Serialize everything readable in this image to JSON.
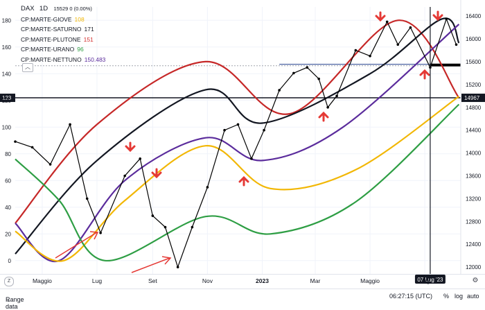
{
  "header": {
    "symbol": "DAX",
    "interval": "1D",
    "price_info": "15529 0 (0.00%)"
  },
  "legend": [
    {
      "label": "CP:MARTE-GIOVE",
      "value": "108",
      "color": "#f2b705"
    },
    {
      "label": "CP:MARTE-SATURNO",
      "value": "171",
      "color": "#131722"
    },
    {
      "label": "CP:MARTE-PLUTONE",
      "value": "151",
      "color": "#d32f2f"
    },
    {
      "label": "CP:MARTE-URANO",
      "value": "96",
      "color": "#2e9e44"
    },
    {
      "label": "CP:MARTE-NETTUNO",
      "value": "150.483",
      "color": "#5b2c9c"
    }
  ],
  "left_axis_labels": [
    "180",
    "160",
    "140",
    "120",
    "100",
    "80",
    "60",
    "40",
    "20",
    "0"
  ],
  "right_axis_labels": [
    "16400",
    "16000",
    "15600",
    "15200",
    "14800",
    "14400",
    "14000",
    "13600",
    "13200",
    "12800",
    "12400",
    "12000"
  ],
  "left_price_tag": "123",
  "right_price_tag": "14967",
  "x_axis_labels": [
    "Maggio",
    "Lug",
    "Set",
    "Nov",
    "2023",
    "Mar",
    "Maggio",
    "Lug"
  ],
  "crosshair_date": "07 Lug '23",
  "footer": {
    "range_label": "Range data",
    "time": "06:27:15 (UTC)",
    "percent": "%",
    "log": "log",
    "auto": "auto"
  },
  "colors": {
    "red": "#c62828",
    "black": "#131722",
    "purple": "#5b2c9c",
    "yellow": "#f5c518",
    "green": "#2e9e44",
    "arrow": "#e53935",
    "blue_line": "#1e3a8a"
  },
  "chart_data": {
    "type": "line",
    "left_axis_ylim": [
      -10,
      190
    ],
    "right_axis_ylim": [
      11880,
      16560
    ],
    "x_range": [
      "2022-04-01",
      "2023-08-10"
    ],
    "series": [
      {
        "name": "CP:MARTE-PLUTONE",
        "color": "#c62828",
        "axis": "left",
        "x": [
          "2022-04-01",
          "2022-07-01",
          "2022-10-30",
          "2023-02-01",
          "2023-06-01",
          "2023-08-08"
        ],
        "values": [
          28,
          102,
          149,
          110,
          180,
          122
        ]
      },
      {
        "name": "CP:MARTE-SATURNO",
        "color": "#131722",
        "axis": "left",
        "x": [
          "2022-04-01",
          "2022-07-01",
          "2022-10-30",
          "2023-01-01",
          "2023-05-01",
          "2023-07-20",
          "2023-08-08"
        ],
        "values": [
          5,
          75,
          128,
          103,
          140,
          181,
          163
        ]
      },
      {
        "name": "CP:MARTE-NETTUNO",
        "color": "#5b2c9c",
        "axis": "left",
        "x": [
          "2022-04-01",
          "2022-05-20",
          "2022-08-01",
          "2022-10-30",
          "2023-01-01",
          "2023-04-01",
          "2023-08-08"
        ],
        "values": [
          28,
          0,
          60,
          92,
          75,
          100,
          177
        ]
      },
      {
        "name": "CP:MARTE-GIOVE",
        "color": "#f2b705",
        "axis": "left",
        "x": [
          "2022-04-01",
          "2022-05-25",
          "2022-08-01",
          "2022-10-30",
          "2023-01-10",
          "2023-04-15",
          "2023-08-08"
        ],
        "values": [
          22,
          0,
          45,
          86,
          54,
          68,
          123
        ]
      },
      {
        "name": "CP:MARTE-URANO",
        "color": "#2e9e44",
        "axis": "left",
        "x": [
          "2022-04-01",
          "2022-05-20",
          "2022-07-10",
          "2022-10-30",
          "2023-01-10",
          "2023-04-15",
          "2023-08-08"
        ],
        "values": [
          76,
          45,
          0,
          33,
          20,
          44,
          117
        ]
      },
      {
        "name": "DAX",
        "color": "#000000",
        "axis": "right",
        "x": [
          "2022-04-01",
          "2022-04-20",
          "2022-05-10",
          "2022-06-01",
          "2022-06-20",
          "2022-07-05",
          "2022-08-01",
          "2022-08-18",
          "2022-09-01",
          "2022-09-15",
          "2022-09-29",
          "2022-10-15",
          "2022-11-01",
          "2022-11-20",
          "2022-12-05",
          "2022-12-20",
          "2023-01-03",
          "2023-01-20",
          "2023-02-05",
          "2023-02-20",
          "2023-03-05",
          "2023-03-15",
          "2023-03-25",
          "2023-04-15",
          "2023-05-01",
          "2023-05-20",
          "2023-06-01",
          "2023-06-15",
          "2023-07-07",
          "2023-07-25",
          "2023-08-05"
        ],
        "values": [
          14200,
          14100,
          13800,
          14500,
          13200,
          12600,
          13600,
          13900,
          12900,
          12700,
          12000,
          12700,
          13400,
          14400,
          14500,
          13900,
          14400,
          15100,
          15400,
          15500,
          15300,
          14800,
          15000,
          15800,
          15700,
          16300,
          15900,
          16200,
          15500,
          16350,
          15900
        ]
      }
    ],
    "levels": [
      {
        "axis": "right",
        "value": 14967
      },
      {
        "axis": "right",
        "value": 15529
      },
      {
        "axis": "right",
        "value": 15554
      }
    ],
    "crosshair": {
      "date": "2023-07-07",
      "value_right": 15600
    }
  }
}
